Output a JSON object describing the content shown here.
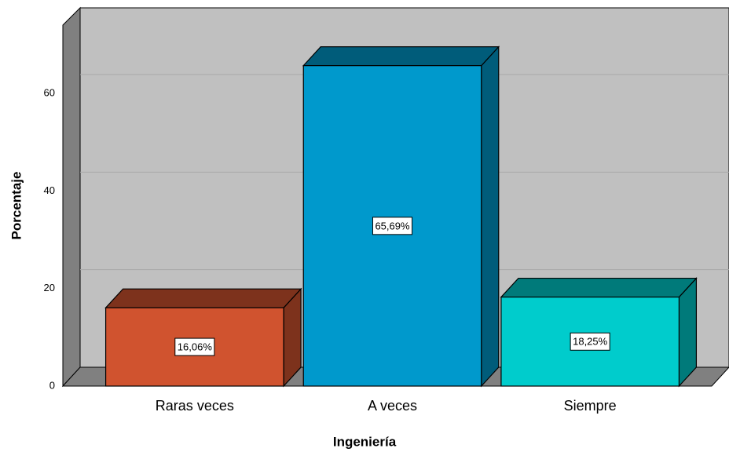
{
  "chart_data": {
    "type": "bar3d",
    "x_label": "Ingeniería",
    "y_label": "Porcentaje",
    "categories": [
      "Raras veces",
      "A veces",
      "Siempre"
    ],
    "values": [
      16.06,
      65.69,
      18.25
    ],
    "value_labels": [
      "16,06%",
      "65,69%",
      "18,25%"
    ],
    "colors": [
      "#d0532f",
      "#0099cc",
      "#00cccc"
    ],
    "ylim": [
      0,
      74
    ],
    "yticks": [
      0,
      20,
      40,
      60
    ],
    "grid": true
  }
}
